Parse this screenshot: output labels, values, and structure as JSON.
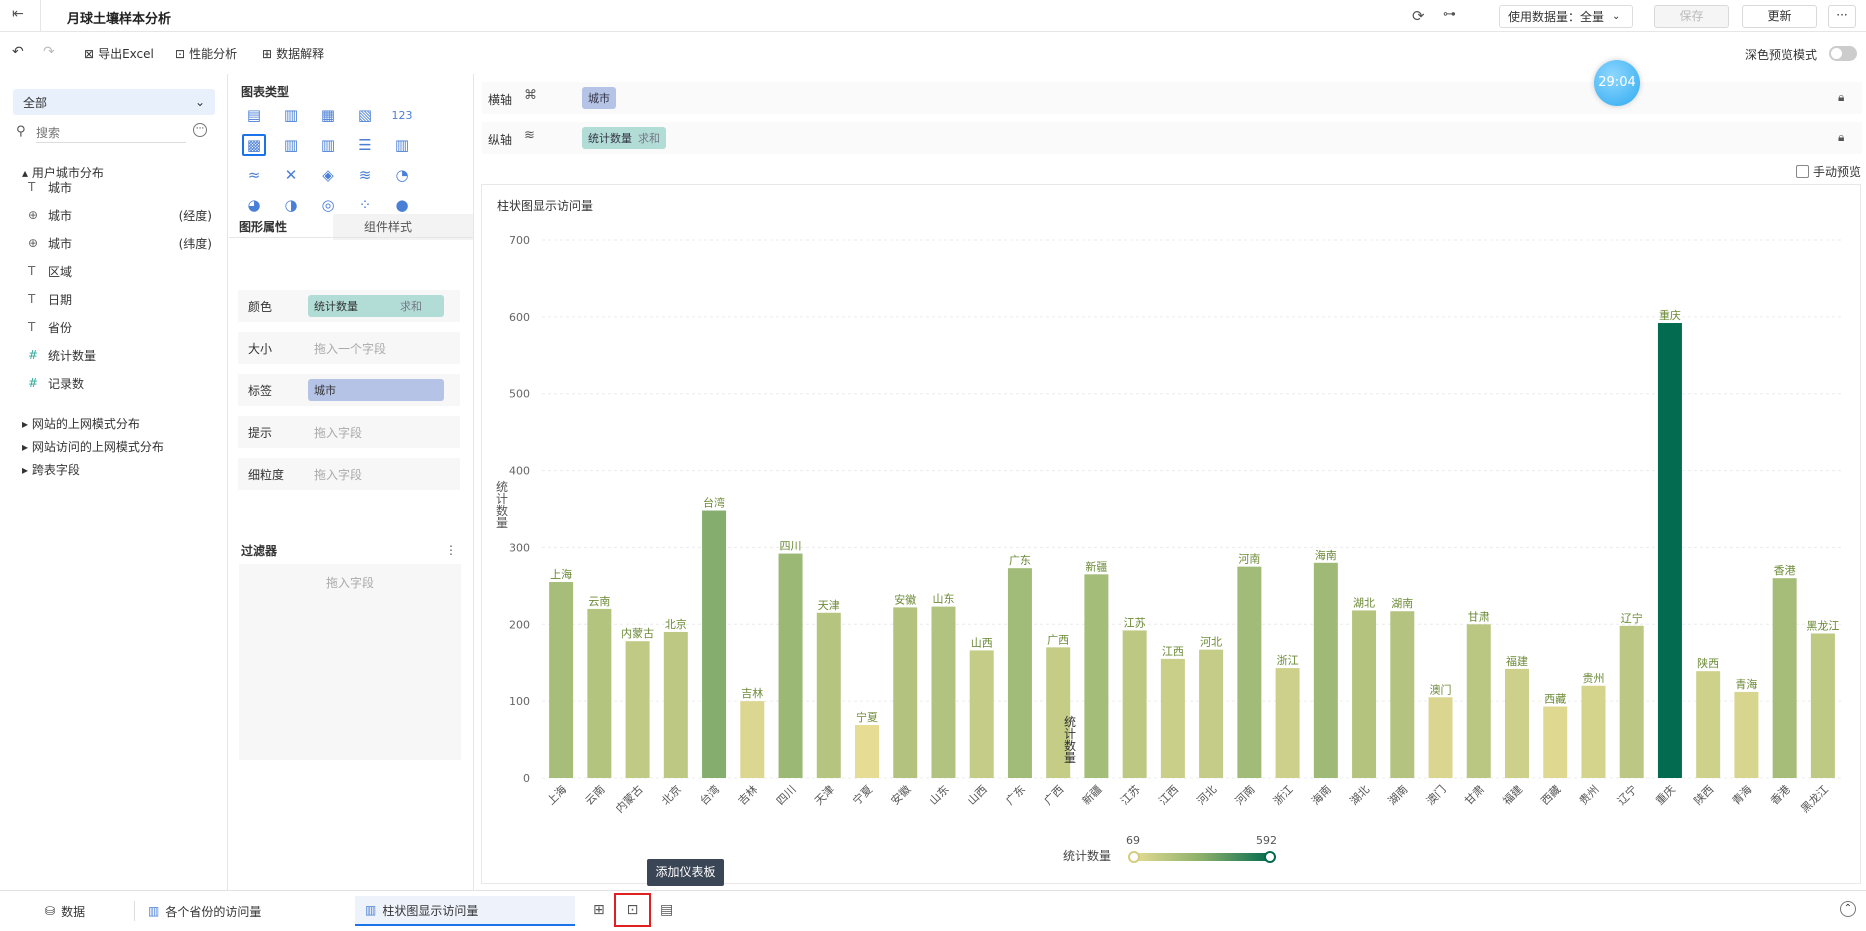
{
  "header": {
    "title": "月球土壤样本分析",
    "data_volume_label": "使用数据量：全量",
    "save_label": "保存",
    "update_label": "更新"
  },
  "toolbar": {
    "export_excel": "导出Excel",
    "perf_analysis": "性能分析",
    "data_explain": "数据解释",
    "dark_preview": "深色预览模式"
  },
  "left_panel": {
    "dropdown": "全部",
    "search_placeholder": "搜索",
    "group1": "用户城市分布",
    "fields": [
      {
        "name": "城市",
        "suffix": "",
        "type": "T"
      },
      {
        "name": "城市",
        "suffix": "(经度)",
        "type": "globe"
      },
      {
        "name": "城市",
        "suffix": "(纬度)",
        "type": "globe"
      },
      {
        "name": "区域",
        "suffix": "",
        "type": "T"
      },
      {
        "name": "日期",
        "suffix": "",
        "type": "T"
      },
      {
        "name": "省份",
        "suffix": "",
        "type": "T"
      },
      {
        "name": "统计数量",
        "suffix": "",
        "type": "#"
      },
      {
        "name": "记录数",
        "suffix": "",
        "type": "#"
      }
    ],
    "groups": [
      "网站的上网模式分布",
      "网站访问的上网模式分布",
      "跨表字段"
    ]
  },
  "mid_panel": {
    "chart_type_title": "图表类型",
    "tab_props": "图形属性",
    "tab_style": "组件样式",
    "props": [
      {
        "label": "颜色",
        "value": "统计数量",
        "agg": "求和"
      },
      {
        "label": "大小",
        "placeholder": "拖入一个字段"
      },
      {
        "label": "标签",
        "value": "城市"
      },
      {
        "label": "提示",
        "placeholder": "拖入字段"
      },
      {
        "label": "细粒度",
        "placeholder": "拖入字段"
      }
    ],
    "filter_title": "过滤器",
    "filter_placeholder": "拖入字段"
  },
  "axes": {
    "x_label": "横轴",
    "x_field": "城市",
    "y_label": "纵轴",
    "y_field": "统计数量",
    "y_agg": "求和",
    "manual_preview": "手动预览",
    "timer": "29:04"
  },
  "legend": {
    "title": "统计数量",
    "min": "69",
    "max": "592"
  },
  "tooltip": "添加仪表板",
  "bottom_tabs": {
    "data": "数据",
    "tab1": "各个省份的访问量",
    "tab2": "柱状图显示访问量"
  },
  "colors": {
    "accent": "#1a73e8",
    "bar_low": "#e6dc94",
    "bar_high": "#036b4f",
    "pill_blue": "#b4c3e6",
    "pill_green": "#b1ddd6"
  },
  "chart_data": {
    "type": "bar",
    "title": "柱状图显示访问量",
    "ylabel": "统计数量",
    "xlabel": "",
    "ylim": [
      0,
      700
    ],
    "yticks": [
      0,
      100,
      200,
      300,
      400,
      500,
      600,
      700
    ],
    "categories": [
      "上海",
      "云南",
      "内蒙古",
      "北京",
      "台湾",
      "吉林",
      "四川",
      "天津",
      "宁夏",
      "安徽",
      "山东",
      "山西",
      "广东",
      "广西",
      "新疆",
      "江苏",
      "江西",
      "河北",
      "河南",
      "浙江",
      "海南",
      "湖北",
      "湖南",
      "澳门",
      "甘肃",
      "福建",
      "西藏",
      "贵州",
      "辽宁",
      "重庆",
      "陕西",
      "青海",
      "香港",
      "黑龙江"
    ],
    "values": [
      255,
      220,
      178,
      190,
      348,
      100,
      292,
      215,
      69,
      222,
      223,
      166,
      273,
      170,
      265,
      192,
      155,
      167,
      275,
      143,
      280,
      218,
      217,
      105,
      200,
      142,
      93,
      120,
      198,
      592,
      139,
      112,
      260,
      188
    ],
    "grid": true
  }
}
